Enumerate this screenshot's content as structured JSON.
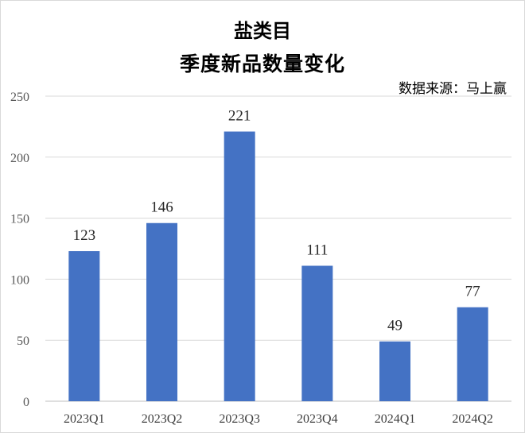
{
  "chart_data": {
    "type": "bar",
    "title": "盐类目",
    "subtitle": "季度新品数量变化",
    "source": "数据来源：马上赢",
    "categories": [
      "2023Q1",
      "2023Q2",
      "2023Q3",
      "2023Q4",
      "2024Q1",
      "2024Q2"
    ],
    "values": [
      123,
      146,
      221,
      111,
      49,
      77
    ],
    "ylim": [
      0,
      250
    ],
    "yticks": [
      0,
      50,
      100,
      150,
      200,
      250
    ],
    "grid": true,
    "legend": "none",
    "bar_color": "#4472c4"
  }
}
